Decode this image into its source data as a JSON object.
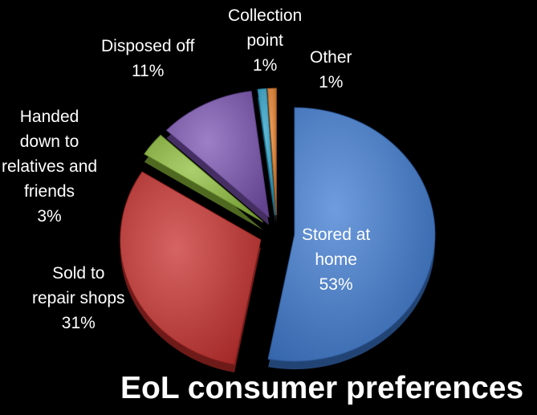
{
  "chart_data": {
    "type": "pie",
    "title": "EoL consumer preferences",
    "slices": [
      {
        "name": "Stored at home",
        "value": 53,
        "label_lines": [
          "Stored at",
          "home",
          "53%"
        ],
        "color": "#3e7bd2"
      },
      {
        "name": "Sold to repair shops",
        "value": 31,
        "label_lines": [
          "Sold to",
          "repair shops",
          "31%"
        ],
        "color": "#c8302d"
      },
      {
        "name": "Handed down to relatives and friends",
        "value": 3,
        "label_lines": [
          "Handed",
          "down to",
          "relatives and",
          "friends",
          "3%"
        ],
        "color": "#8fbf3c"
      },
      {
        "name": "Disposed off",
        "value": 11,
        "label_lines": [
          "Disposed off",
          "11%"
        ],
        "color": "#7b54b3"
      },
      {
        "name": "Collection point",
        "value": 1,
        "label_lines": [
          "Collection",
          "point",
          "1%"
        ],
        "color": "#2ea3c9"
      },
      {
        "name": "Other",
        "value": 1,
        "label_lines": [
          "Other",
          "1%"
        ],
        "color": "#e9822c"
      }
    ]
  }
}
